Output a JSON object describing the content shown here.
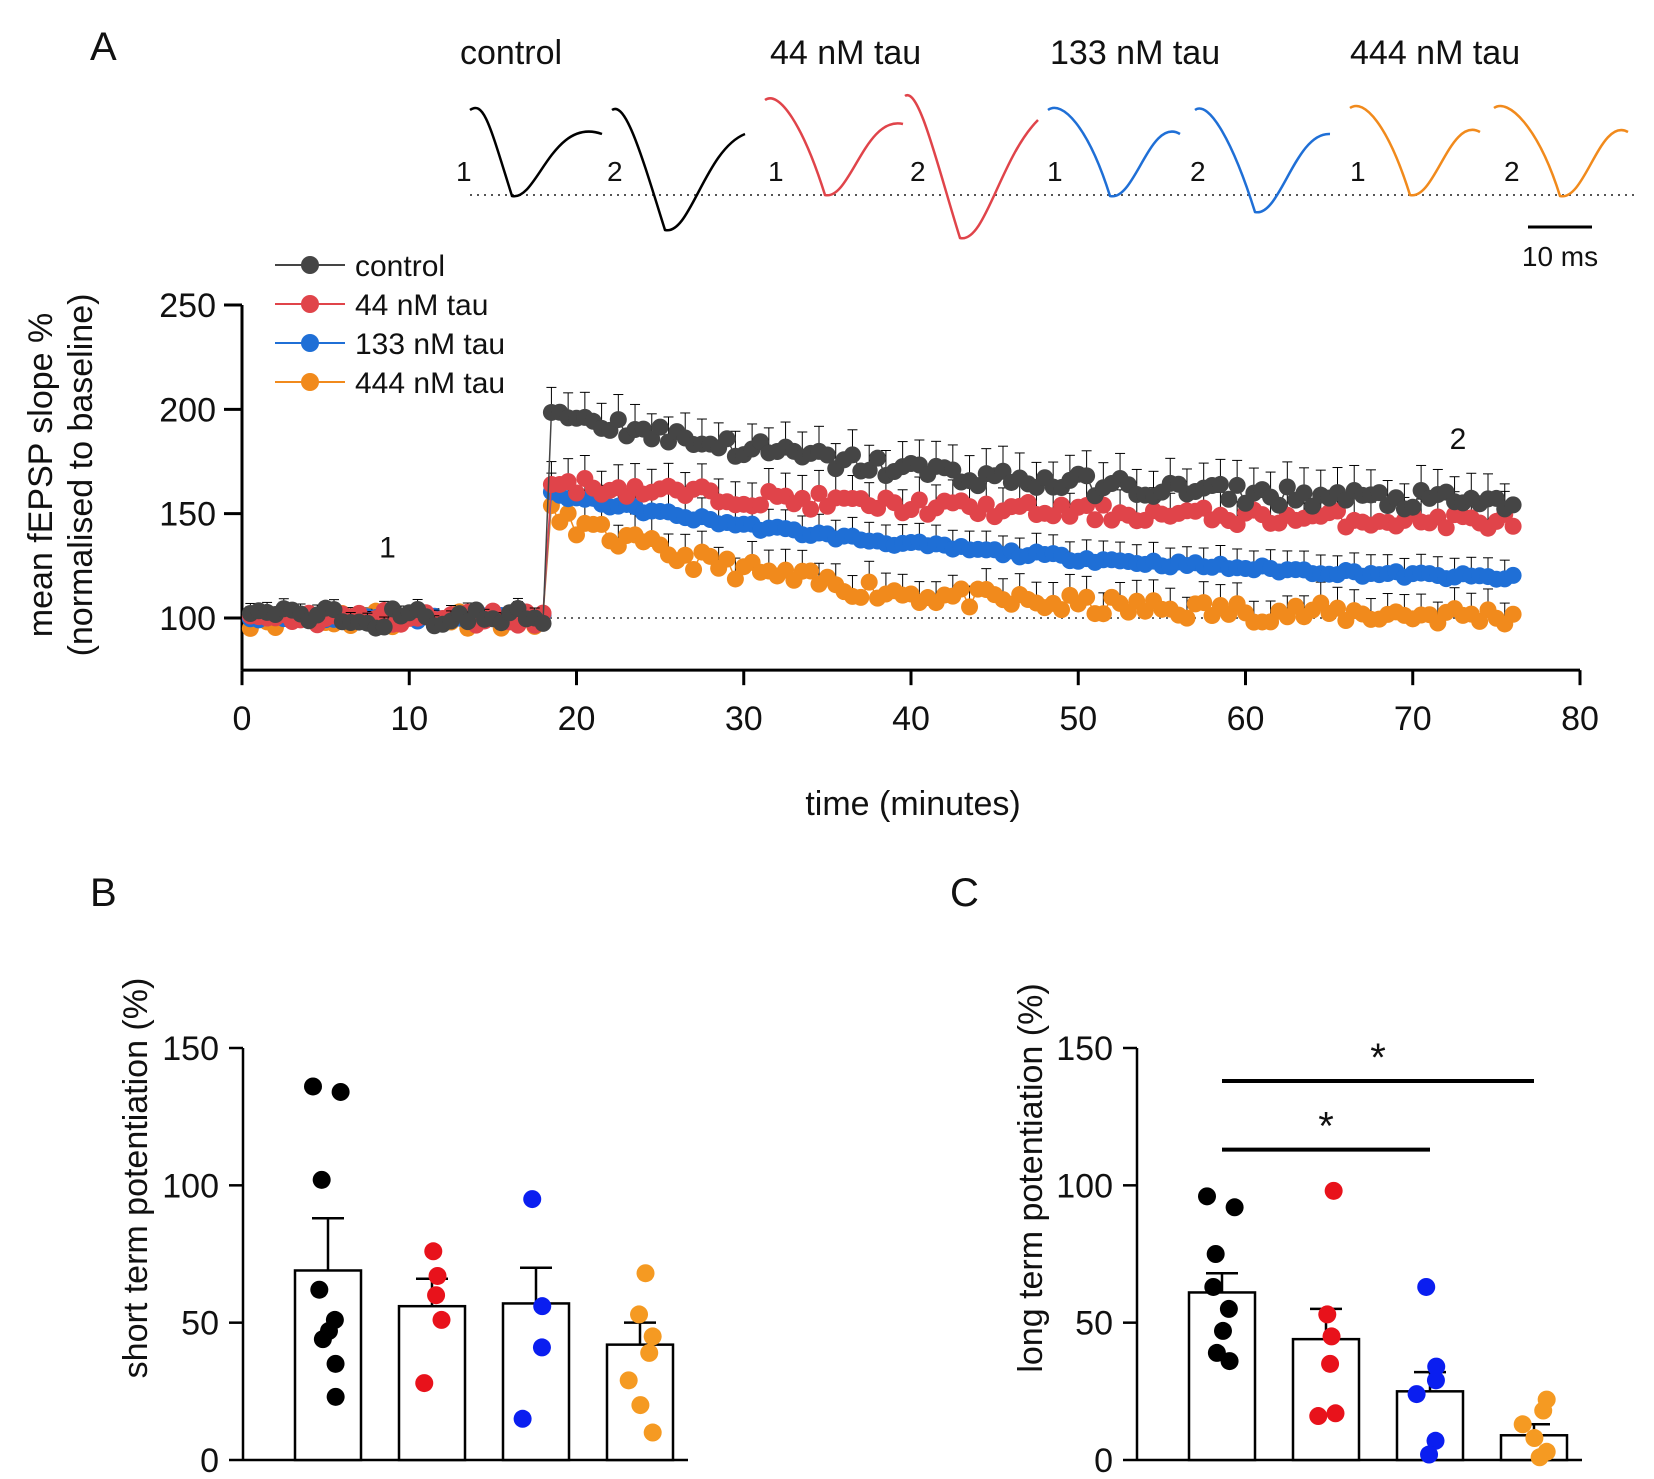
{
  "panels": {
    "a": "A",
    "b": "B",
    "c": "C"
  },
  "colors": {
    "control": "#454545",
    "tau44": "#e0444a",
    "tau133": "#1f6fd6",
    "tau444": "#f18a1c",
    "black": "#000000",
    "red": "#e8121b",
    "blue": "#0a1ef0",
    "orange": "#f59a22"
  },
  "traces": {
    "labels": [
      "control",
      "44 nM tau",
      "133 nM tau",
      "444 nM tau"
    ],
    "marker1": "1",
    "marker2": "2",
    "scale_bar_label": "10 ms"
  },
  "chart_data": [
    {
      "id": "A",
      "type": "scatter",
      "title": "",
      "xlabel": "time (minutes)",
      "ylabel": "mean fEPSP slope %",
      "ylabel2": "(normalised to baseline)",
      "xlim": [
        0,
        80
      ],
      "ylim": [
        75,
        250
      ],
      "xticks": [
        0,
        10,
        20,
        30,
        40,
        50,
        60,
        70,
        80
      ],
      "yticks": [
        100,
        150,
        200,
        250
      ],
      "baseline": 100,
      "annotations": [
        {
          "text": "1",
          "x": 8.7,
          "y": 129
        },
        {
          "text": "2",
          "x": 72.7,
          "y": 181
        }
      ],
      "legend_position": "top-left",
      "tetanus_time": 18.3,
      "series": [
        {
          "name": "control",
          "color": "#454545",
          "baseline_mean": 100,
          "peak": 200,
          "final": 150,
          "decay_tau": 25,
          "sd": 5,
          "err": 12
        },
        {
          "name": "44 nM tau",
          "color": "#e0444a",
          "baseline_mean": 100,
          "peak": 165,
          "final": 143,
          "decay_tau": 30,
          "sd": 4,
          "err": 11
        },
        {
          "name": "133 nM tau",
          "color": "#1f6fd6",
          "baseline_mean": 100,
          "peak": 160,
          "final": 112,
          "decay_tau": 30,
          "sd": 1.5,
          "err": 9
        },
        {
          "name": "444 nM tau",
          "color": "#f18a1c",
          "baseline_mean": 100,
          "peak": 150,
          "final": 100,
          "decay_tau": 15,
          "sd": 5,
          "err": 10
        }
      ]
    },
    {
      "id": "B",
      "type": "bar",
      "ylabel": "short term potentiation (%)",
      "ylim": [
        0,
        150
      ],
      "yticks": [
        0,
        50,
        100,
        150
      ],
      "categories": [
        "control",
        "44 nM tau",
        "133 nM tau",
        "444 nM tau"
      ],
      "values": [
        69,
        56,
        57,
        42
      ],
      "errors": [
        19,
        10,
        13,
        8
      ],
      "points": [
        [
          136,
          134,
          102,
          62,
          51,
          47,
          44,
          35,
          23
        ],
        [
          76,
          67,
          60,
          51,
          28
        ],
        [
          95,
          56,
          41,
          15
        ],
        [
          68,
          53,
          45,
          39,
          29,
          20,
          10
        ]
      ],
      "point_colors": [
        "#000000",
        "#e8121b",
        "#0a1ef0",
        "#f59a22"
      ],
      "significance": []
    },
    {
      "id": "C",
      "type": "bar",
      "ylabel": "long term potentiation (%)",
      "ylim": [
        0,
        150
      ],
      "yticks": [
        0,
        50,
        100,
        150
      ],
      "categories": [
        "control",
        "44 nM tau",
        "133 nM tau",
        "444 nM tau"
      ],
      "values": [
        61,
        44,
        25,
        9
      ],
      "errors": [
        7,
        11,
        7,
        4
      ],
      "points": [
        [
          96,
          92,
          75,
          63,
          55,
          47,
          39,
          36
        ],
        [
          98,
          53,
          45,
          35,
          17,
          16
        ],
        [
          63,
          34,
          29,
          24,
          7,
          2
        ],
        [
          22,
          18,
          13,
          8,
          3,
          1
        ]
      ],
      "point_colors": [
        "#000000",
        "#e8121b",
        "#0a1ef0",
        "#f59a22"
      ],
      "significance": [
        {
          "from": 0,
          "to": 3,
          "label": "*"
        },
        {
          "from": 0,
          "to": 2,
          "label": "*"
        }
      ]
    }
  ]
}
